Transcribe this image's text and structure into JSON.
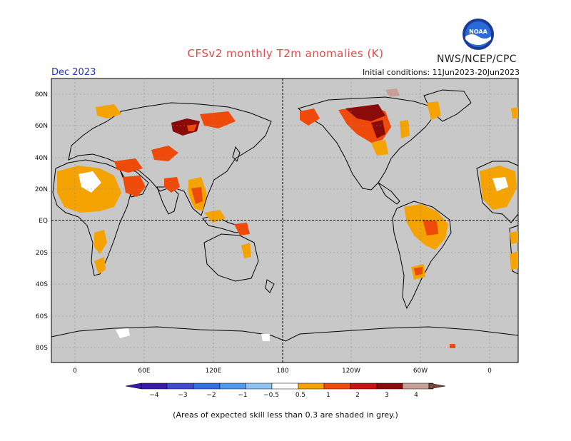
{
  "header": {
    "title": "CFSv2 monthly T2m anomalies (K)",
    "agency": "NWS/NCEP/CPC",
    "logo_text": "NOAA",
    "valid_month": "Dec 2023",
    "initial_conditions": "Initial conditions: 11Jun2023-20Jun2023"
  },
  "footer_note": "(Areas of expected skill less than 0.3 are shaded in grey.)",
  "map": {
    "projection": "equirectangular",
    "central_longitude": 180,
    "background_color": "#c8c8c8",
    "lat_labels": [
      "80N",
      "60N",
      "40N",
      "20N",
      "EQ",
      "20S",
      "40S",
      "60S",
      "80S"
    ],
    "lon_labels": [
      "0",
      "60E",
      "120E",
      "180",
      "120W",
      "60W",
      "0"
    ],
    "grid": "dotted"
  },
  "colorbar": {
    "ticks": [
      "−4",
      "−3",
      "−2",
      "−1",
      "−0.5",
      "0.5",
      "1",
      "2",
      "3",
      "4"
    ],
    "colors": [
      "#3a1aa8",
      "#3f4ad0",
      "#2f6fe0",
      "#4e9af0",
      "#8fc3f5",
      "#ffffff",
      "#f5a300",
      "#f04a0a",
      "#c81414",
      "#8b0a0a",
      "#c8a096",
      "#7b4a3c"
    ]
  }
}
